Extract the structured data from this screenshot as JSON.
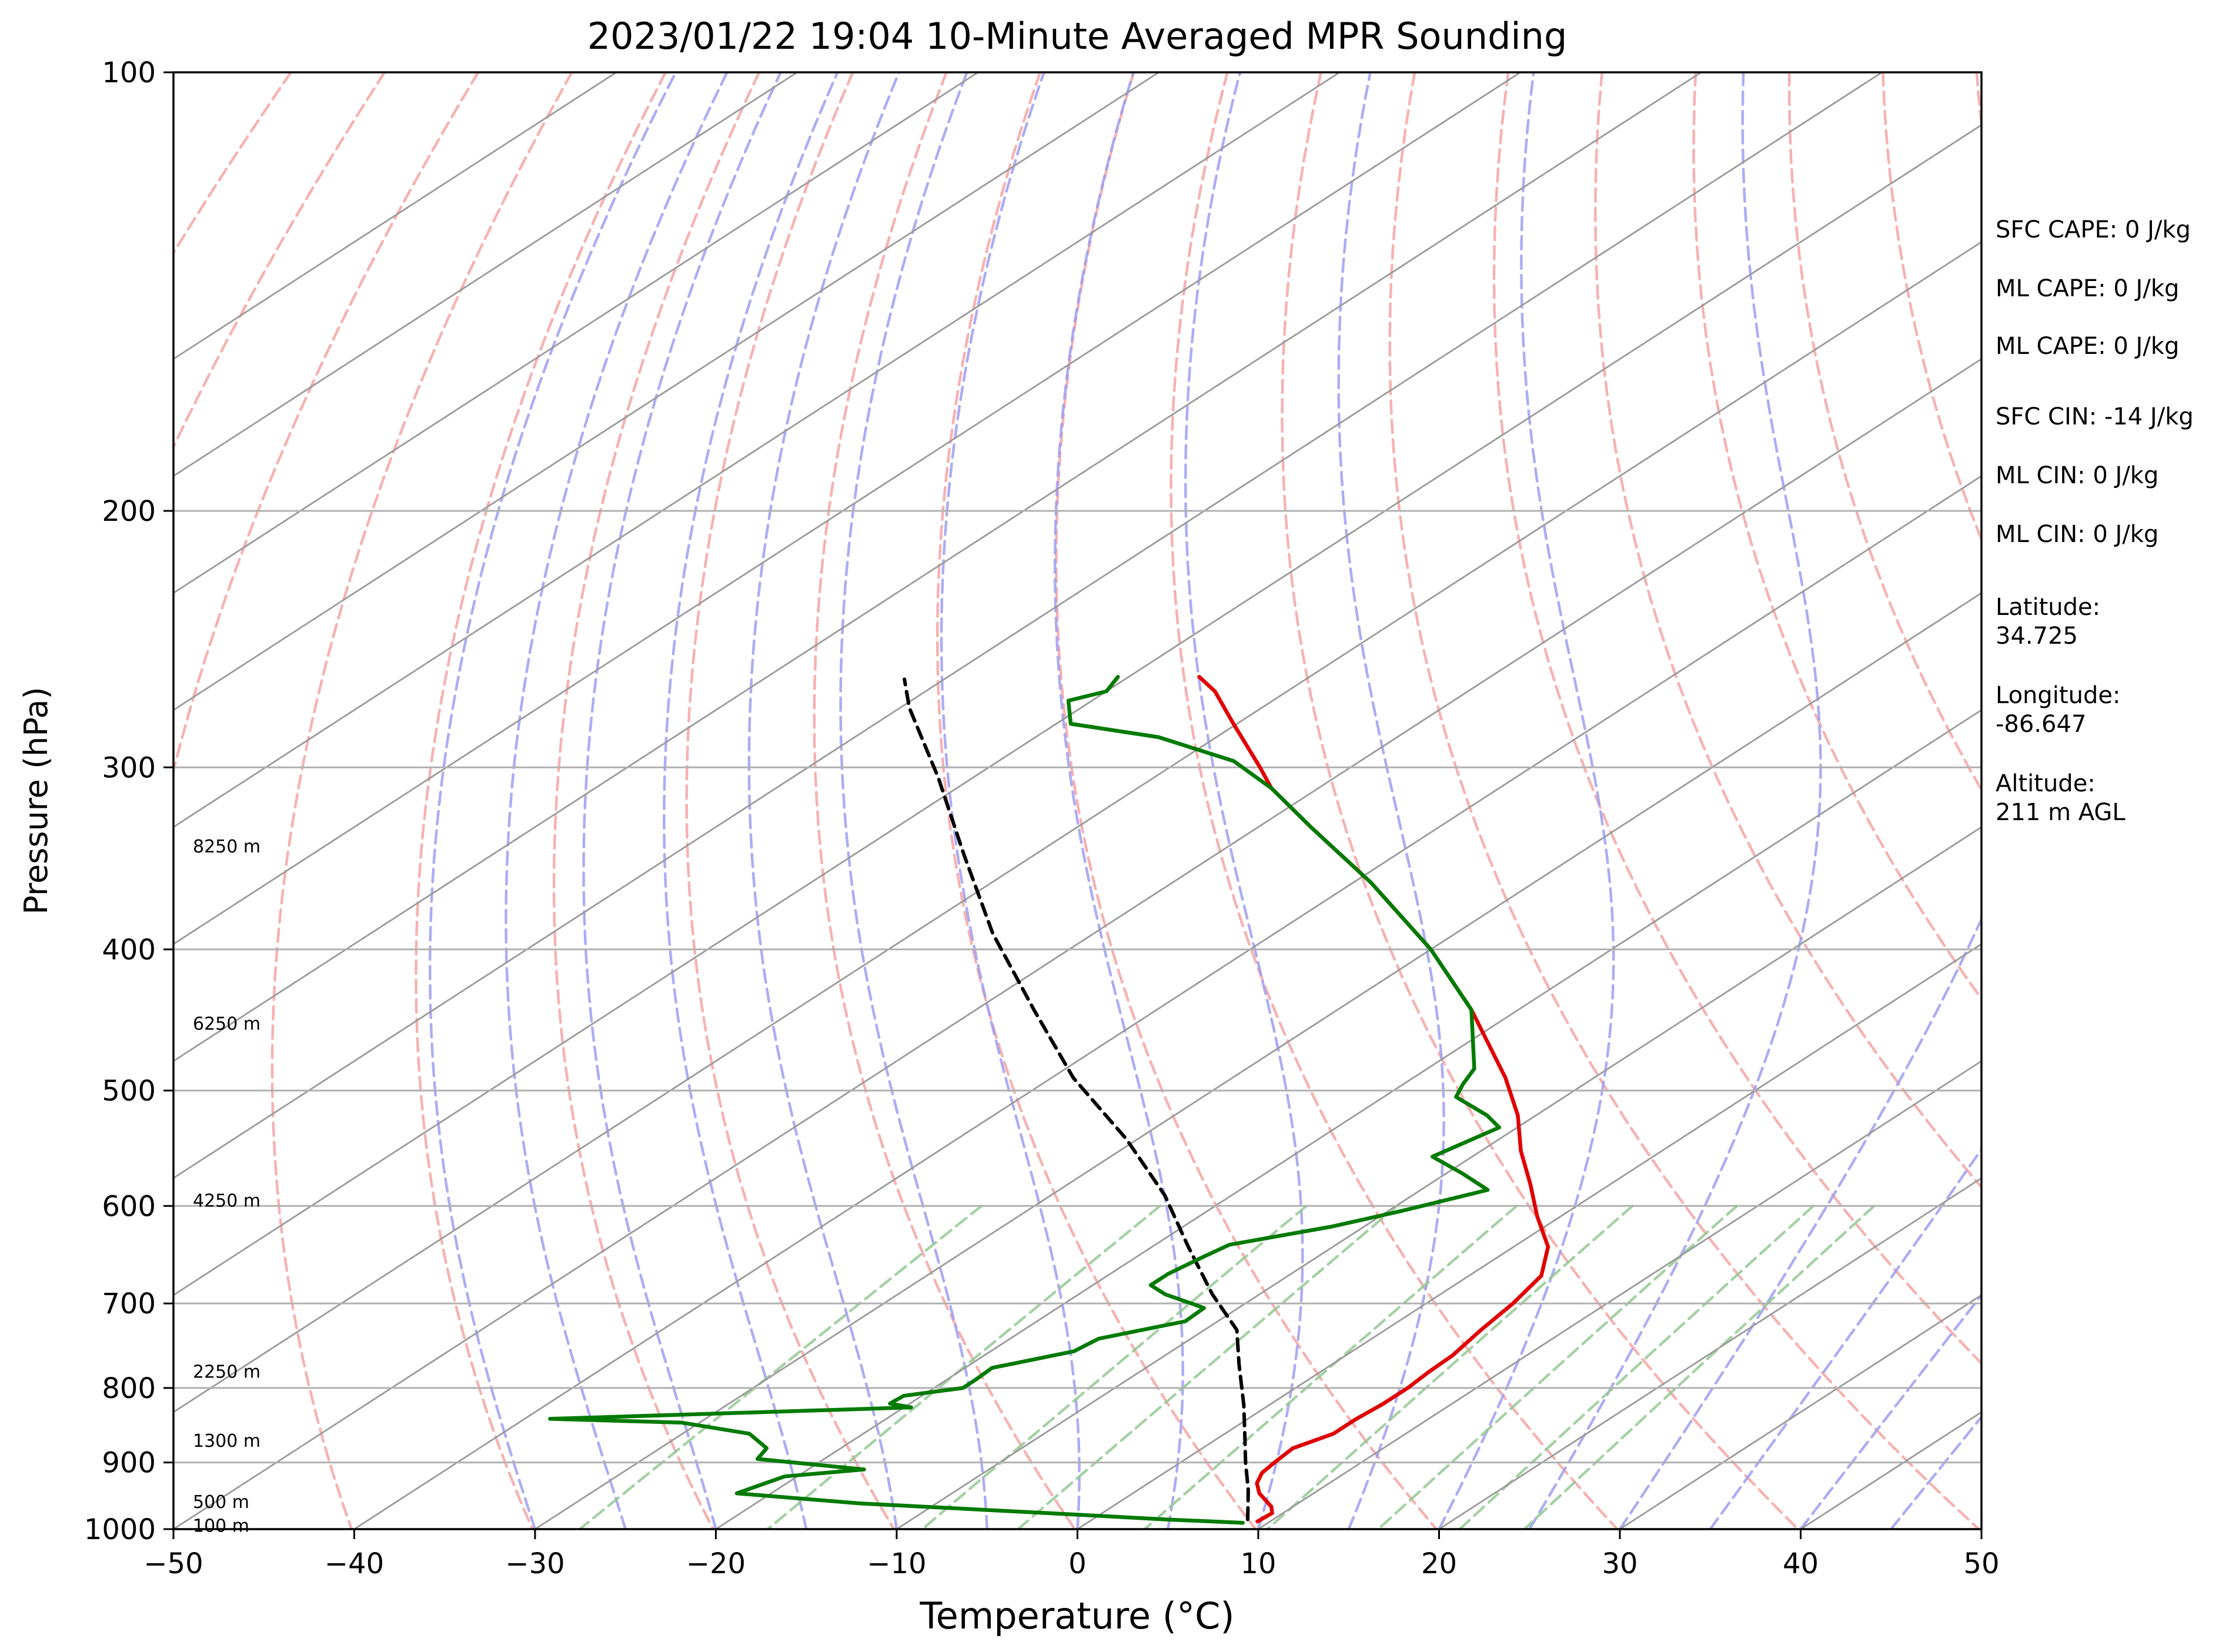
{
  "chart_data": {
    "type": "line",
    "title": "2023/01/22 19:04 10-Minute Averaged MPR Sounding",
    "xlabel": "Temperature (°C)",
    "ylabel": "Pressure (hPa)",
    "xlim": [
      -50,
      50
    ],
    "ylim": [
      1000,
      100
    ],
    "y_scale": "log",
    "skew": "Skew-T log-P diagram",
    "x_ticks": [
      "−50",
      "−40",
      "−30",
      "−20",
      "−10",
      "0",
      "10",
      "20",
      "30",
      "40",
      "50"
    ],
    "x_tick_values": [
      -50,
      -40,
      -30,
      -20,
      -10,
      0,
      10,
      20,
      30,
      40,
      50
    ],
    "y_ticks": [
      "100",
      "200",
      "300",
      "400",
      "500",
      "600",
      "700",
      "800",
      "900",
      "1000"
    ],
    "y_tick_values": [
      100,
      200,
      300,
      400,
      500,
      600,
      700,
      800,
      900,
      1000
    ],
    "grid": "horizontal isobars",
    "colors": {
      "temperature": "#e00000",
      "dewpoint": "#007a00",
      "parcel": "#000000",
      "isotherm": "#9a9a9a",
      "dry_adiabat": "#f4a3a3",
      "moist_adiabat": "#9d9df2",
      "mixing_ratio": "#94c994"
    },
    "series": [
      {
        "key": "temperature",
        "points": [
          [
            9.3,
            988
          ],
          [
            9.4,
            975
          ],
          [
            8.8,
            965
          ],
          [
            7.9,
            955
          ],
          [
            7.0,
            945
          ],
          [
            6.0,
            930
          ],
          [
            5.4,
            915
          ],
          [
            5.2,
            900
          ],
          [
            5.0,
            880
          ],
          [
            6.0,
            860
          ],
          [
            6.0,
            840
          ],
          [
            6.2,
            820
          ],
          [
            6.2,
            800
          ],
          [
            6.0,
            780
          ],
          [
            5.9,
            760
          ],
          [
            5.3,
            730
          ],
          [
            4.8,
            700
          ],
          [
            4.0,
            670
          ],
          [
            1.9,
            640
          ],
          [
            -1.3,
            610
          ],
          [
            -4.4,
            580
          ],
          [
            -7.8,
            550
          ],
          [
            -11.0,
            520
          ],
          [
            -14.9,
            490
          ],
          [
            -22.6,
            440
          ],
          [
            -30.0,
            400
          ],
          [
            -39.0,
            360
          ],
          [
            -47.0,
            330
          ],
          [
            -52.6,
            310
          ],
          [
            -55.0,
            300
          ],
          [
            -60.2,
            280
          ],
          [
            -64.0,
            266
          ],
          [
            -66.1,
            260
          ]
        ]
      },
      {
        "key": "dewpoint",
        "points": [
          [
            8.6,
            990
          ],
          [
            4.2,
            985
          ],
          [
            -3.0,
            975
          ],
          [
            -14.3,
            960
          ],
          [
            -21.9,
            945
          ],
          [
            -20.7,
            920
          ],
          [
            -16.9,
            910
          ],
          [
            -23.7,
            895
          ],
          [
            -24.1,
            880
          ],
          [
            -26.3,
            860
          ],
          [
            -31.0,
            845
          ],
          [
            -38.6,
            840
          ],
          [
            -19.6,
            825
          ],
          [
            -21.1,
            820
          ],
          [
            -21.0,
            810
          ],
          [
            -18.4,
            800
          ],
          [
            -18.4,
            790
          ],
          [
            -18.5,
            775
          ],
          [
            -15.4,
            755
          ],
          [
            -15.1,
            740
          ],
          [
            -11.8,
            720
          ],
          [
            -11.9,
            705
          ],
          [
            -15.2,
            690
          ],
          [
            -16.8,
            680
          ],
          [
            -16.8,
            668
          ],
          [
            -16.3,
            650
          ],
          [
            -15.9,
            638
          ],
          [
            -11.8,
            620
          ],
          [
            -9.3,
            605
          ],
          [
            -6.3,
            585
          ],
          [
            -9.1,
            570
          ],
          [
            -12.2,
            555
          ],
          [
            -11.0,
            530
          ],
          [
            -12.7,
            520
          ],
          [
            -16.0,
            505
          ],
          [
            -16.7,
            495
          ],
          [
            -17.4,
            483
          ],
          [
            -22.6,
            440
          ],
          [
            -30.0,
            400
          ],
          [
            -39.0,
            360
          ],
          [
            -47.0,
            330
          ],
          [
            -52.6,
            310
          ],
          [
            -57.0,
            297
          ],
          [
            -63.2,
            286
          ],
          [
            -69.2,
            280
          ],
          [
            -71.3,
            270
          ],
          [
            -70.0,
            266
          ],
          [
            -70.6,
            260
          ]
        ]
      },
      {
        "key": "parcel",
        "points": [
          [
            8.6,
            985
          ],
          [
            6.1,
            940
          ],
          [
            3.6,
            900
          ],
          [
            1.1,
            860
          ],
          [
            -1.4,
            822
          ],
          [
            -5.2,
            770
          ],
          [
            -8.2,
            730
          ],
          [
            -12.6,
            690
          ],
          [
            -18.0,
            640
          ],
          [
            -23.7,
            590
          ],
          [
            -30.6,
            540
          ],
          [
            -38.8,
            490
          ],
          [
            -46.8,
            440
          ],
          [
            -55.6,
            390
          ],
          [
            -63.8,
            345
          ],
          [
            -71.9,
            305
          ],
          [
            -79.5,
            273
          ],
          [
            -82.2,
            261
          ]
        ]
      }
    ],
    "height_labels": [
      {
        "text": "8250 m",
        "p": 340
      },
      {
        "text": "6250 m",
        "p": 450
      },
      {
        "text": "4250 m",
        "p": 595
      },
      {
        "text": "2250 m",
        "p": 780
      },
      {
        "text": "1300 m",
        "p": 870
      },
      {
        "text": "500 m",
        "p": 958
      },
      {
        "text": "100 m",
        "p": 995
      }
    ],
    "annotations": [
      [
        "SFC CAPE: 0 J/kg"
      ],
      [
        "ML CAPE: 0 J/kg"
      ],
      [
        "ML CAPE: 0 J/kg"
      ],
      [
        "SFC CIN: -14 J/kg"
      ],
      [
        "ML CIN: 0 J/kg"
      ],
      [
        "ML CIN: 0 J/kg"
      ],
      [
        "Latitude:",
        "34.725"
      ],
      [
        "Longitude:",
        "-86.647"
      ],
      [
        "Altitude:",
        "211 m AGL"
      ]
    ]
  }
}
